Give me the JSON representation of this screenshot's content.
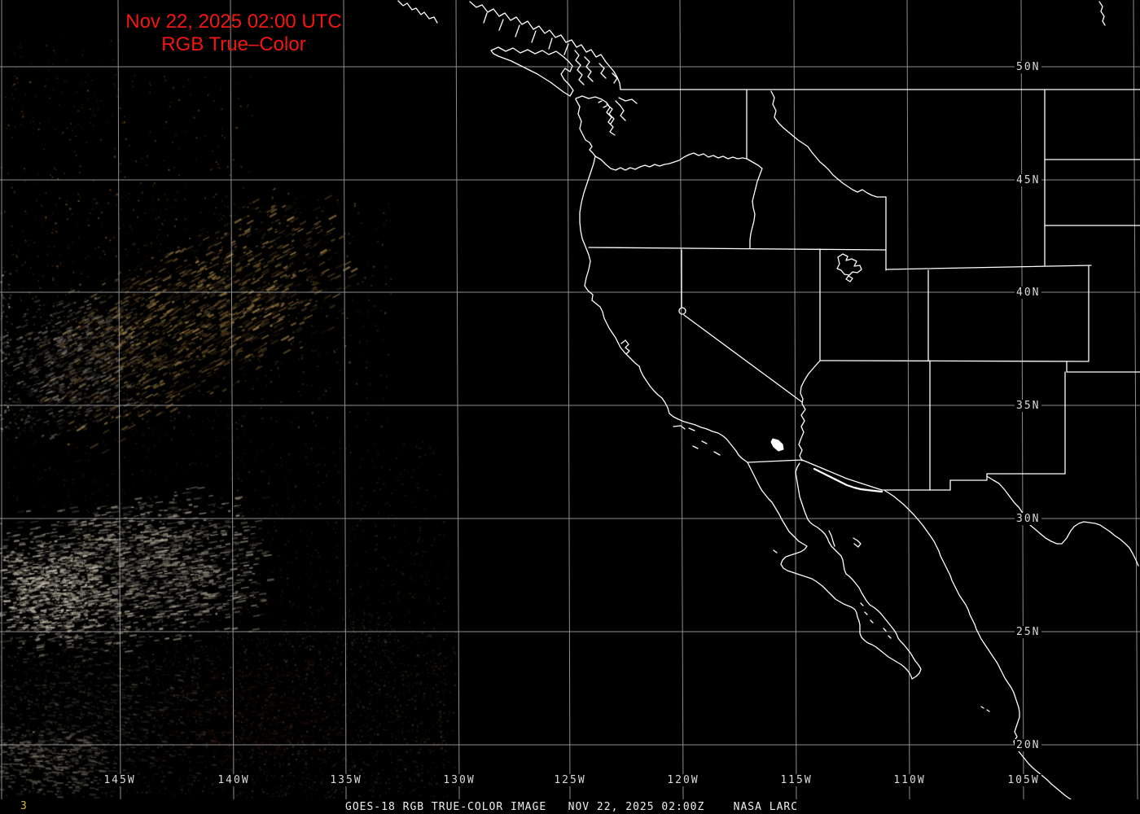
{
  "header": {
    "timestamp": "Nov 22, 2025 02:00 UTC",
    "product": "RGB True–Color",
    "text_color": "#f2170f"
  },
  "graticule": {
    "line_color": "#9e9e9e",
    "label_color": "#dadada",
    "latitude_labels": [
      "50N",
      "45N",
      "40N",
      "35N",
      "30N",
      "25N",
      "20N"
    ],
    "longitude_labels": [
      "145W",
      "140W",
      "135W",
      "130W",
      "125W",
      "120W",
      "115W",
      "110W",
      "105W"
    ]
  },
  "map": {
    "outline_color": "#ffffff",
    "description": "GOES-18 true color satellite scene of the western United States, Pacific Ocean and Baja California with coastlines and state borders"
  },
  "footer": {
    "frame_number": "3",
    "frame_number_color": "#cdbb3a",
    "caption": "GOES-18 RGB TRUE-COLOR IMAGE   NOV 22, 2025 02:00Z    NASA LARC",
    "caption_color": "#efefef"
  }
}
